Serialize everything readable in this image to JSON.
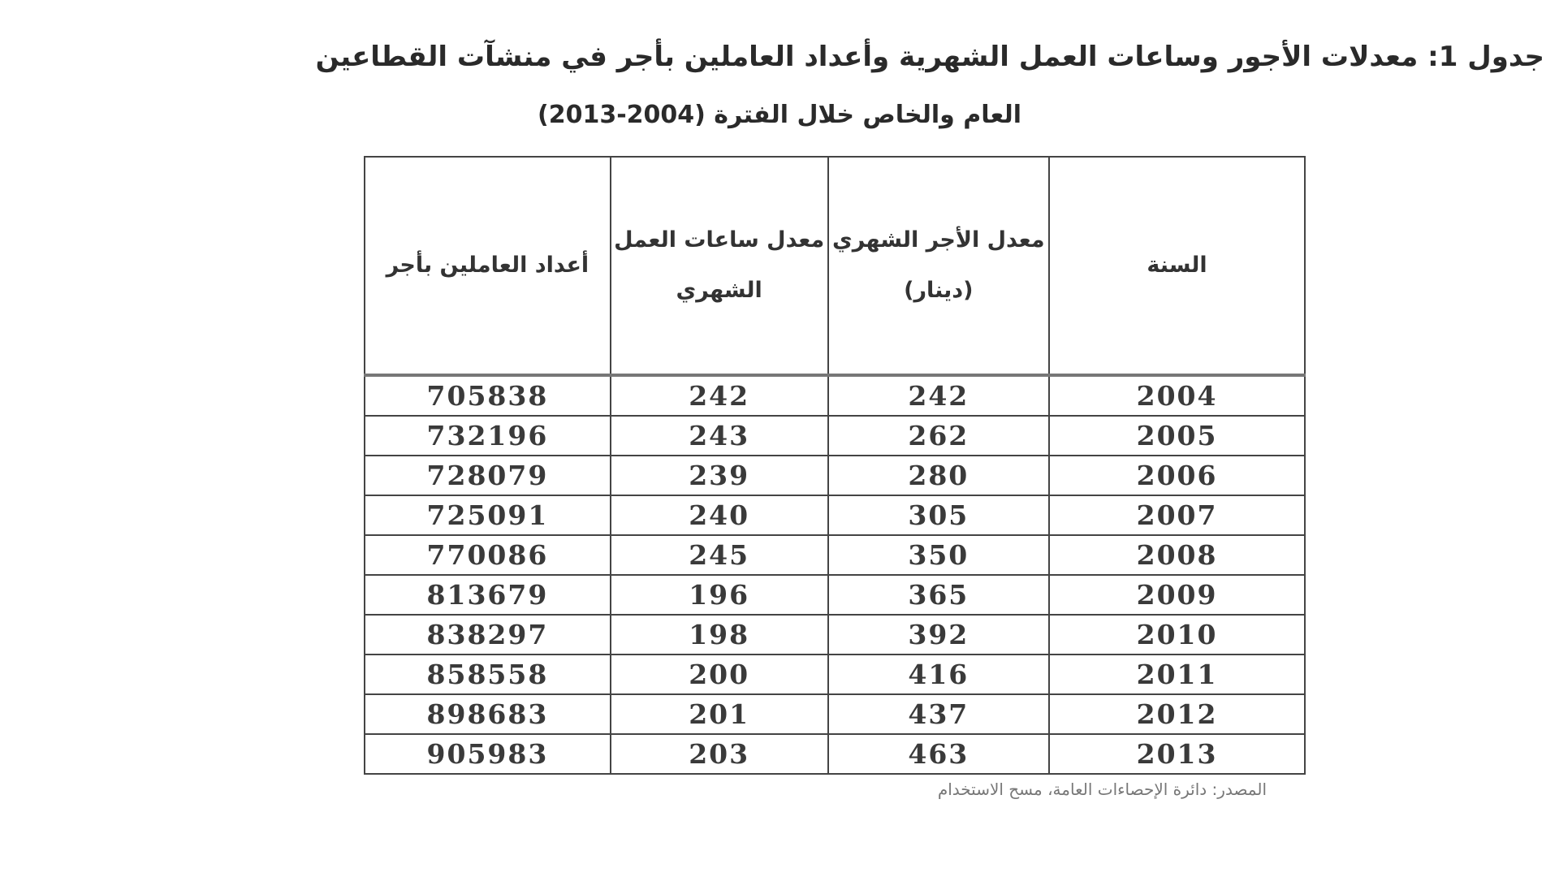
{
  "title_line1": "جدول 1: معدلات الأجور وساعات العمل الشهرية وأعداد العاملين بأجر في منشآت القطاعين",
  "title_line2": "العام والخاص خلال الفترة (2004-2013)",
  "table": {
    "headers": [
      "السنة",
      "معدل الأجر الشهري (دينار)",
      "معدل ساعات العمل الشهري",
      "أعداد العاملين بأجر"
    ],
    "rows": [
      [
        "2004",
        "242",
        "242",
        "705838"
      ],
      [
        "2005",
        "262",
        "243",
        "732196"
      ],
      [
        "2006",
        "280",
        "239",
        "728079"
      ],
      [
        "2007",
        "305",
        "240",
        "725091"
      ],
      [
        "2008",
        "350",
        "245",
        "770086"
      ],
      [
        "2009",
        "365",
        "196",
        "813679"
      ],
      [
        "2010",
        "392",
        "198",
        "838297"
      ],
      [
        "2011",
        "416",
        "200",
        "858558"
      ],
      [
        "2012",
        "437",
        "201",
        "898683"
      ],
      [
        "2013",
        "463",
        "203",
        "905983"
      ]
    ]
  },
  "source": "المصدر: دائرة الإحصاءات العامة، مسح الاستخدام"
}
